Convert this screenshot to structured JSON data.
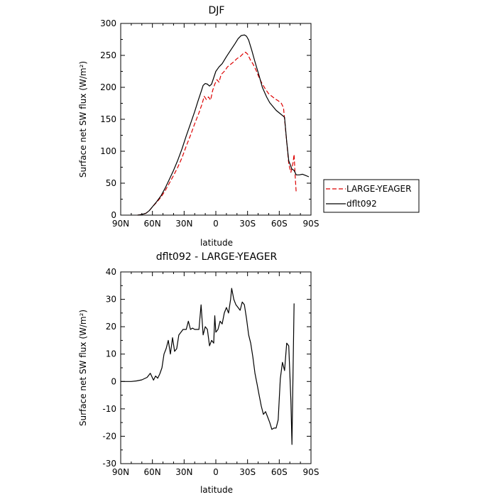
{
  "chart_data": [
    {
      "type": "line",
      "title": "DJF",
      "xlabel": "latitude",
      "ylabel": "Surface net SW flux (W/m²)",
      "xlim": [
        90,
        -90
      ],
      "ylim": [
        0,
        300
      ],
      "x_ticks": [
        90,
        60,
        30,
        0,
        -30,
        -60,
        -90
      ],
      "x_tick_labels": [
        "90N",
        "60N",
        "30N",
        "0",
        "30S",
        "60S",
        "90S"
      ],
      "y_ticks": [
        0,
        50,
        100,
        150,
        200,
        250,
        300
      ],
      "y_tick_labels": [
        "0",
        "50",
        "100",
        "150",
        "200",
        "250",
        "300"
      ],
      "legend_position": "outside-right",
      "series": [
        {
          "name": "LARGE-YEAGER",
          "color": "#dd0000",
          "dash": "dashed",
          "points": [
            [
              74,
              0
            ],
            [
              70,
              1
            ],
            [
              66,
              3
            ],
            [
              63,
              7
            ],
            [
              60,
              13
            ],
            [
              56,
              20
            ],
            [
              52,
              28
            ],
            [
              48,
              38
            ],
            [
              44,
              50
            ],
            [
              40,
              62
            ],
            [
              36,
              75
            ],
            [
              32,
              90
            ],
            [
              28,
              108
            ],
            [
              24,
              125
            ],
            [
              20,
              143
            ],
            [
              16,
              160
            ],
            [
              13,
              174
            ],
            [
              11,
              186
            ],
            [
              9,
              181
            ],
            [
              7,
              185
            ],
            [
              5,
              180
            ],
            [
              3,
              195
            ],
            [
              1,
              205
            ],
            [
              -1,
              212
            ],
            [
              -3,
              208
            ],
            [
              -5,
              220
            ],
            [
              -8,
              225
            ],
            [
              -11,
              232
            ],
            [
              -14,
              236
            ],
            [
              -17,
              240
            ],
            [
              -20,
              245
            ],
            [
              -23,
              248
            ],
            [
              -26,
              253
            ],
            [
              -28,
              255
            ],
            [
              -30,
              252
            ],
            [
              -33,
              242
            ],
            [
              -35,
              237
            ],
            [
              -38,
              227
            ],
            [
              -41,
              215
            ],
            [
              -44,
              205
            ],
            [
              -47,
              197
            ],
            [
              -50,
              190
            ],
            [
              -53,
              186
            ],
            [
              -56,
              182
            ],
            [
              -59,
              179
            ],
            [
              -62,
              175
            ],
            [
              -64,
              168
            ],
            [
              -65,
              150
            ],
            [
              -67,
              115
            ],
            [
              -69,
              80
            ],
            [
              -71,
              67
            ],
            [
              -73,
              82
            ],
            [
              -74,
              95
            ],
            [
              -75,
              62
            ],
            [
              -76,
              35
            ]
          ]
        },
        {
          "name": "dflt092",
          "color": "#000000",
          "dash": "solid",
          "points": [
            [
              74,
              0
            ],
            [
              70,
              1
            ],
            [
              66,
              3
            ],
            [
              63,
              7
            ],
            [
              60,
              13
            ],
            [
              56,
              21
            ],
            [
              52,
              30
            ],
            [
              48,
              42
            ],
            [
              44,
              56
            ],
            [
              40,
              70
            ],
            [
              36,
              86
            ],
            [
              32,
              104
            ],
            [
              28,
              124
            ],
            [
              24,
              143
            ],
            [
              20,
              162
            ],
            [
              17,
              178
            ],
            [
              14,
              193
            ],
            [
              12,
              203
            ],
            [
              10,
              206
            ],
            [
              8,
              205
            ],
            [
              6,
              202
            ],
            [
              4,
              205
            ],
            [
              2,
              215
            ],
            [
              0,
              225
            ],
            [
              -3,
              232
            ],
            [
              -6,
              237
            ],
            [
              -10,
              248
            ],
            [
              -14,
              258
            ],
            [
              -18,
              268
            ],
            [
              -21,
              276
            ],
            [
              -24,
              281
            ],
            [
              -27,
              282
            ],
            [
              -29,
              280
            ],
            [
              -31,
              274
            ],
            [
              -34,
              258
            ],
            [
              -37,
              240
            ],
            [
              -41,
              218
            ],
            [
              -44,
              200
            ],
            [
              -48,
              185
            ],
            [
              -51,
              176
            ],
            [
              -54,
              170
            ],
            [
              -57,
              164
            ],
            [
              -60,
              160
            ],
            [
              -63,
              156
            ],
            [
              -65,
              153
            ],
            [
              -67,
              115
            ],
            [
              -69,
              85
            ],
            [
              -72,
              72
            ],
            [
              -74,
              70
            ],
            [
              -76,
              63
            ],
            [
              -79,
              63
            ],
            [
              -82,
              64
            ],
            [
              -85,
              62
            ],
            [
              -88,
              60
            ]
          ]
        }
      ]
    },
    {
      "type": "line",
      "title": "dflt092 - LARGE-YEAGER",
      "xlabel": "latitude",
      "ylabel": "Surface net SW flux (W/m²)",
      "xlim": [
        90,
        -90
      ],
      "ylim": [
        -30,
        40
      ],
      "x_ticks": [
        90,
        60,
        30,
        0,
        -30,
        -60,
        -90
      ],
      "x_tick_labels": [
        "90N",
        "60N",
        "30N",
        "0",
        "30S",
        "60S",
        "90S"
      ],
      "y_ticks": [
        -30,
        -20,
        -10,
        0,
        10,
        20,
        30,
        40
      ],
      "y_tick_labels": [
        "-30",
        "-20",
        "-10",
        "0",
        "10",
        "20",
        "30",
        "40"
      ],
      "series": [
        {
          "color": "#000000",
          "dash": "solid",
          "points": [
            [
              90,
              0
            ],
            [
              80,
              0
            ],
            [
              75,
              0.2
            ],
            [
              70,
              0.6
            ],
            [
              65,
              1.5
            ],
            [
              62,
              3
            ],
            [
              59,
              0.5
            ],
            [
              57,
              2
            ],
            [
              55,
              1.2
            ],
            [
              53,
              2.8
            ],
            [
              51,
              5
            ],
            [
              49,
              10
            ],
            [
              47,
              12
            ],
            [
              45,
              15
            ],
            [
              43,
              10
            ],
            [
              41,
              16
            ],
            [
              39,
              11
            ],
            [
              37,
              12
            ],
            [
              35,
              17
            ],
            [
              33,
              18
            ],
            [
              31,
              19
            ],
            [
              28,
              19
            ],
            [
              26,
              22
            ],
            [
              24,
              19
            ],
            [
              22,
              19.5
            ],
            [
              20,
              19
            ],
            [
              18,
              19
            ],
            [
              16,
              19
            ],
            [
              14,
              28
            ],
            [
              12,
              17
            ],
            [
              10,
              20
            ],
            [
              8,
              19
            ],
            [
              6,
              13
            ],
            [
              4,
              15
            ],
            [
              2,
              14
            ],
            [
              1,
              24
            ],
            [
              0,
              18
            ],
            [
              -2,
              19
            ],
            [
              -4,
              22
            ],
            [
              -6,
              21
            ],
            [
              -8,
              25
            ],
            [
              -10,
              27
            ],
            [
              -12,
              25
            ],
            [
              -14,
              30
            ],
            [
              -15,
              34
            ],
            [
              -17,
              30
            ],
            [
              -19,
              28
            ],
            [
              -21,
              27
            ],
            [
              -23,
              26
            ],
            [
              -25,
              29
            ],
            [
              -27,
              28
            ],
            [
              -29,
              23
            ],
            [
              -31,
              17
            ],
            [
              -33,
              14
            ],
            [
              -35,
              9
            ],
            [
              -37,
              3
            ],
            [
              -39,
              -1
            ],
            [
              -41,
              -5
            ],
            [
              -43,
              -9
            ],
            [
              -45,
              -12
            ],
            [
              -47,
              -11
            ],
            [
              -49,
              -13
            ],
            [
              -51,
              -15
            ],
            [
              -53,
              -17.5
            ],
            [
              -55,
              -17
            ],
            [
              -57,
              -17
            ],
            [
              -59,
              -14
            ],
            [
              -61,
              1
            ],
            [
              -63,
              7
            ],
            [
              -65,
              4
            ],
            [
              -67,
              14
            ],
            [
              -69,
              13
            ],
            [
              -71,
              -7
            ],
            [
              -72,
              -23
            ],
            [
              -74,
              28.5
            ]
          ]
        }
      ]
    }
  ]
}
